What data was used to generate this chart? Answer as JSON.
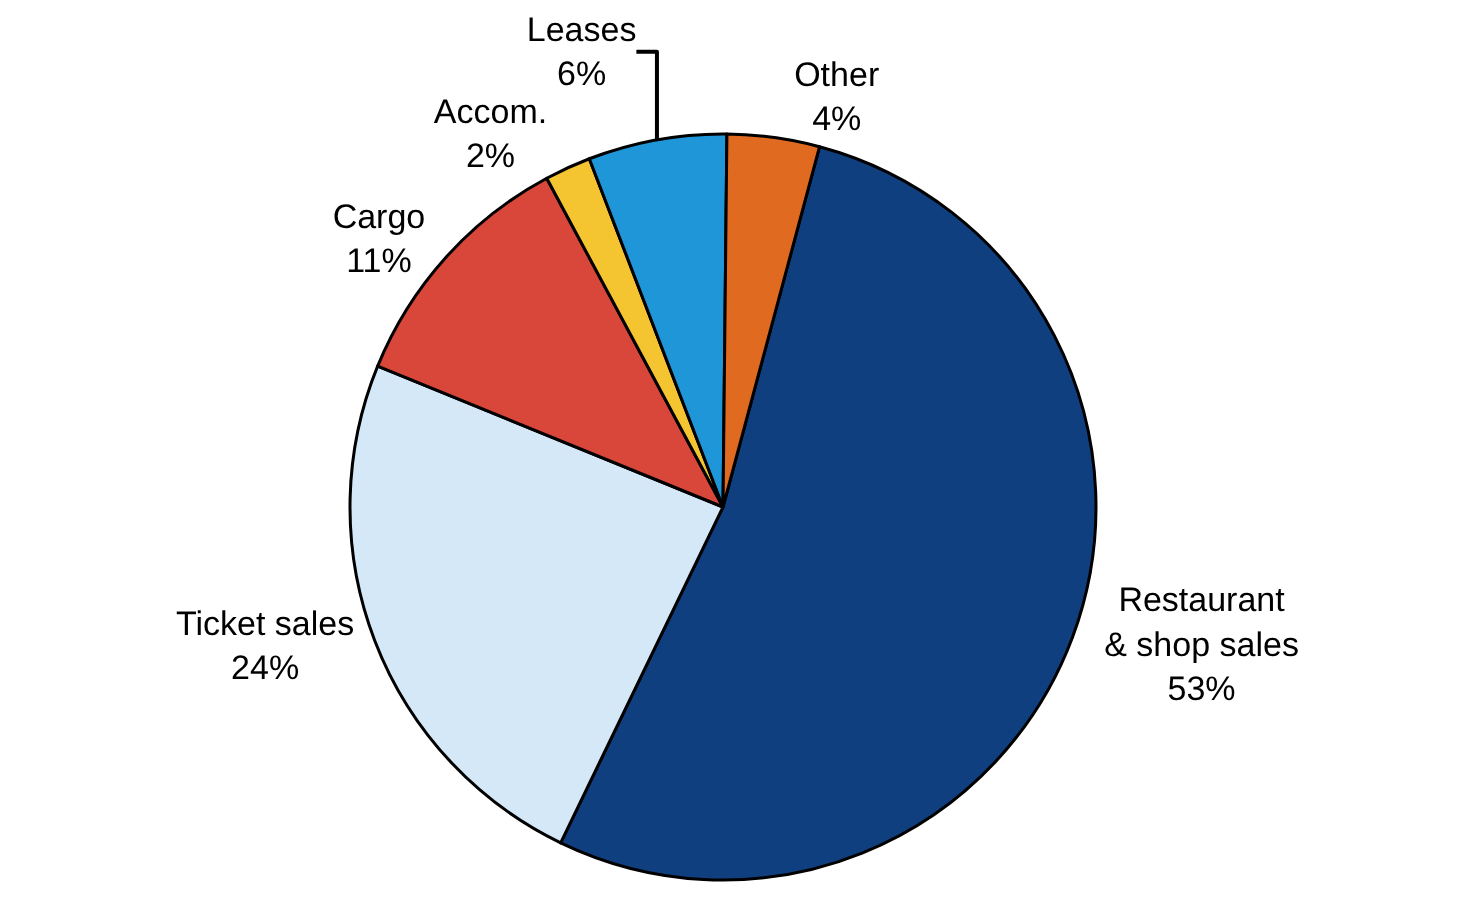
{
  "chart_data": {
    "type": "pie",
    "categories": [
      "Restaurant\n& shop sales",
      "Ticket sales",
      "Cargo",
      "Accom.",
      "Leases",
      "Other"
    ],
    "values": [
      53,
      24,
      11,
      2,
      6,
      4
    ],
    "value_labels": [
      "53%",
      "24%",
      "11%",
      "2%",
      "6%",
      "4%"
    ],
    "colors": [
      "#0f3f7f",
      "#d5e8f7",
      "#d9463a",
      "#f5c431",
      "#1e96d8",
      "#e06a20"
    ],
    "legend": false
  }
}
